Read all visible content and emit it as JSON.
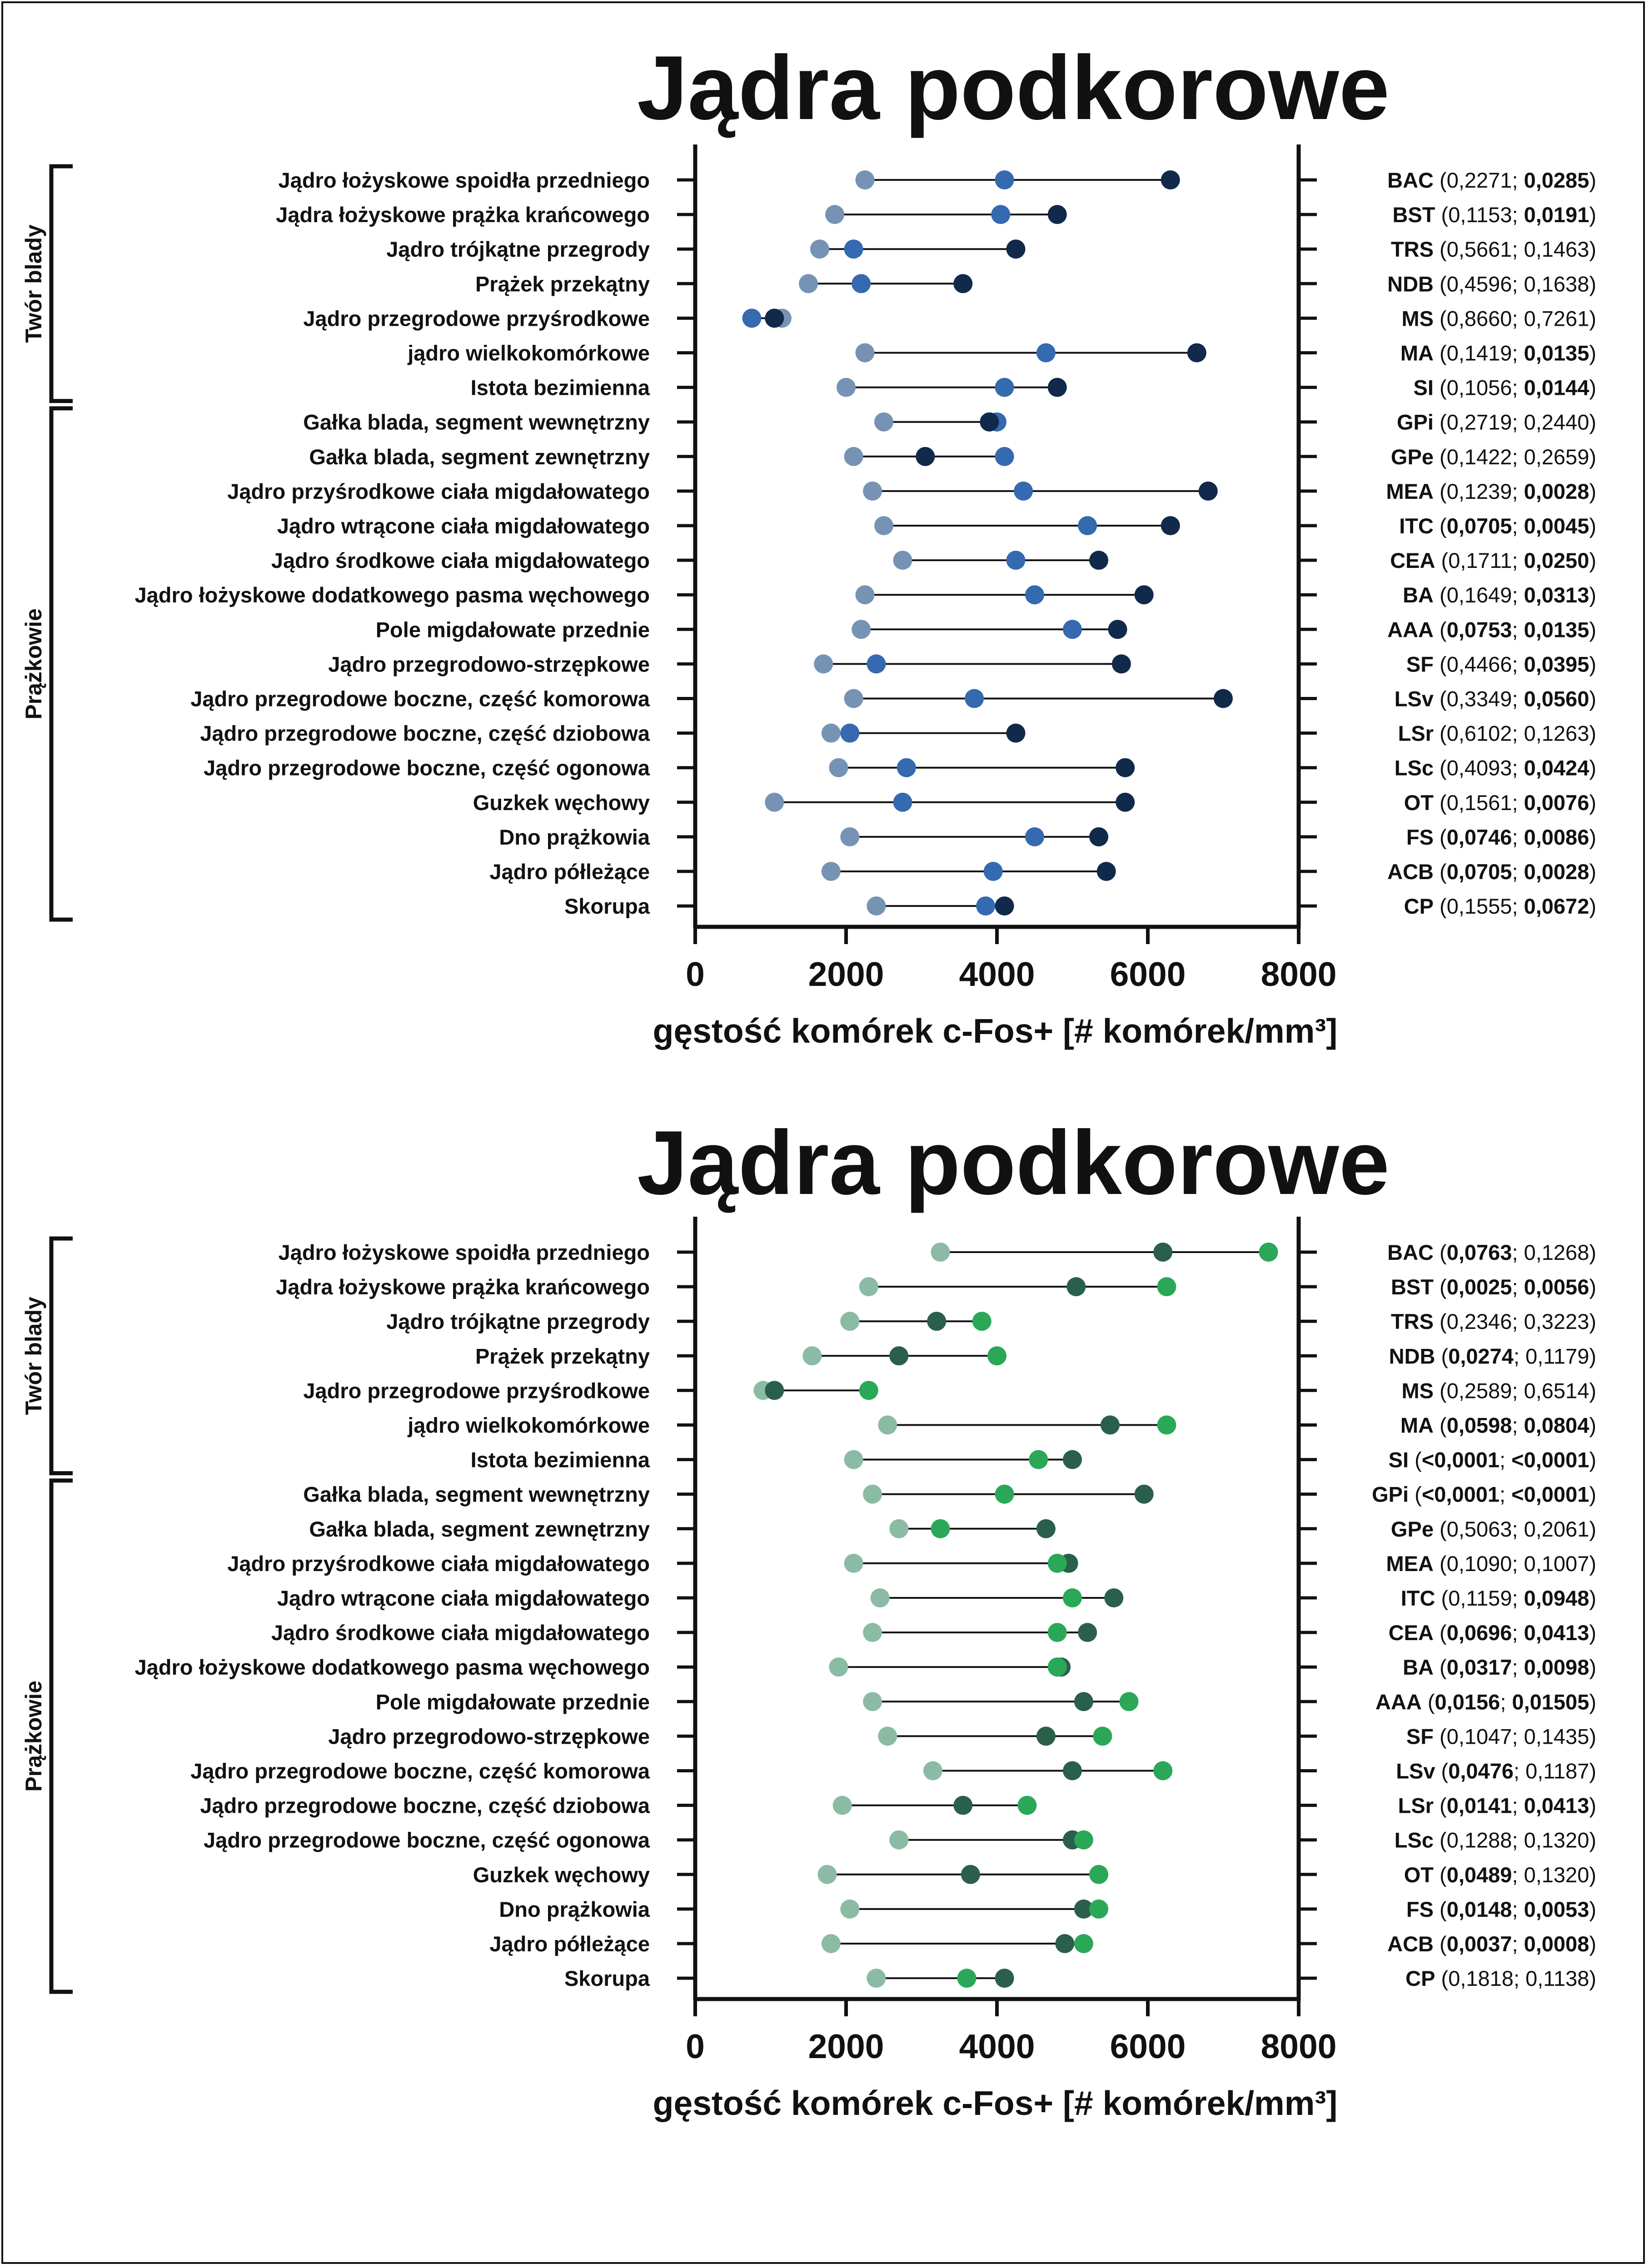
{
  "colors": {
    "panel_top": [
      "#7693b4",
      "#3569b0",
      "#11294a"
    ],
    "panel_bottom": [
      "#8bbba4",
      "#2a5f4b",
      "#2aa858"
    ],
    "line": "#111111"
  },
  "chart_data": [
    {
      "type": "dot-range",
      "title": "Jądra podkorowe",
      "xlabel": "gęstość  komórek c-Fos+ [# komórek/mm³]",
      "xlim": [
        0,
        8000
      ],
      "xticks": [
        "0",
        "2000",
        "4000",
        "6000",
        "8000"
      ],
      "groups": [
        {
          "name": "Twór blady",
          "from": 0,
          "to": 6
        },
        {
          "name": "Prążkowie",
          "from": 7,
          "to": 21
        }
      ],
      "rows": [
        {
          "label": "Jądro łożyskowe spoidła przedniego",
          "values": [
            2250,
            4100,
            6300
          ],
          "abbr": "BAC",
          "p1": "0,2271",
          "p1_bold": false,
          "p2": "0,0285",
          "p2_bold": true
        },
        {
          "label": "Jądra łożyskowe prążka krańcowego",
          "values": [
            1850,
            4050,
            4800
          ],
          "abbr": "BST",
          "p1": "0,1153",
          "p1_bold": false,
          "p2": "0,0191",
          "p2_bold": true
        },
        {
          "label": "Jądro trójkątne przegrody",
          "values": [
            1650,
            2100,
            4250
          ],
          "abbr": "TRS",
          "p1": "0,5661",
          "p1_bold": false,
          "p2": "0,1463",
          "p2_bold": false
        },
        {
          "label": "Prążek przekątny",
          "values": [
            1500,
            2200,
            3550
          ],
          "abbr": "NDB",
          "p1": "0,4596",
          "p1_bold": false,
          "p2": "0,1638",
          "p2_bold": false
        },
        {
          "label": "Jądro przegrodowe przyśrodkowe",
          "values": [
            1150,
            750,
            1050
          ],
          "abbr": "MS",
          "p1": "0,8660",
          "p1_bold": false,
          "p2": "0,7261",
          "p2_bold": false
        },
        {
          "label": "jądro wielkokomórkowe",
          "values": [
            2250,
            4650,
            6650
          ],
          "abbr": "MA",
          "p1": "0,1419",
          "p1_bold": false,
          "p2": "0,0135",
          "p2_bold": true
        },
        {
          "label": "Istota bezimienna",
          "values": [
            2000,
            4100,
            4800
          ],
          "abbr": "SI",
          "p1": "0,1056",
          "p1_bold": false,
          "p2": "0,0144",
          "p2_bold": true
        },
        {
          "label": "Gałka blada, segment wewnętrzny",
          "values": [
            2500,
            4000,
            3900
          ],
          "abbr": "GPi",
          "p1": "0,2719",
          "p1_bold": false,
          "p2": "0,2440",
          "p2_bold": false
        },
        {
          "label": "Gałka blada, segment zewnętrzny",
          "values": [
            2100,
            4100,
            3050
          ],
          "abbr": "GPe",
          "p1": "0,1422",
          "p1_bold": false,
          "p2": "0,2659",
          "p2_bold": false
        },
        {
          "label": "Jądro przyśrodkowe ciała migdałowatego",
          "values": [
            2350,
            4350,
            6800
          ],
          "abbr": "MEA",
          "p1": "0,1239",
          "p1_bold": false,
          "p2": "0,0028",
          "p2_bold": true
        },
        {
          "label": "Jądro wtrącone ciała migdałowatego",
          "values": [
            2500,
            5200,
            6300
          ],
          "abbr": "ITC",
          "p1": "0,0705",
          "p1_bold": true,
          "p2": "0,0045",
          "p2_bold": true
        },
        {
          "label": "Jądro środkowe ciała migdałowatego",
          "values": [
            2750,
            4250,
            5350
          ],
          "abbr": "CEA",
          "p1": "0,1711",
          "p1_bold": false,
          "p2": "0,0250",
          "p2_bold": true
        },
        {
          "label": "Jądro łożyskowe dodatkowego pasma węchowego",
          "values": [
            2250,
            4500,
            5950
          ],
          "abbr": "BA",
          "p1": "0,1649",
          "p1_bold": false,
          "p2": "0,0313",
          "p2_bold": true
        },
        {
          "label": "Pole migdałowate przednie",
          "values": [
            2200,
            5000,
            5600
          ],
          "abbr": "AAA",
          "p1": "0,0753",
          "p1_bold": true,
          "p2": "0,0135",
          "p2_bold": true
        },
        {
          "label": "Jądro przegrodowo-strzępkowe",
          "values": [
            1700,
            2400,
            5650
          ],
          "abbr": "SF",
          "p1": "0,4466",
          "p1_bold": false,
          "p2": "0,0395",
          "p2_bold": true
        },
        {
          "label": "Jądro przegrodowe boczne, część komorowa",
          "values": [
            2100,
            3700,
            7000
          ],
          "abbr": "LSv",
          "p1": "0,3349",
          "p1_bold": false,
          "p2": "0,0560",
          "p2_bold": true
        },
        {
          "label": "Jądro przegrodowe boczne, część dziobowa",
          "values": [
            1800,
            2050,
            4250
          ],
          "abbr": "LSr",
          "p1": "0,6102",
          "p1_bold": false,
          "p2": "0,1263",
          "p2_bold": false
        },
        {
          "label": "Jądro przegrodowe boczne, część ogonowa",
          "values": [
            1900,
            2800,
            5700
          ],
          "abbr": "LSc",
          "p1": "0,4093",
          "p1_bold": false,
          "p2": "0,0424",
          "p2_bold": true
        },
        {
          "label": "Guzkek węchowy",
          "values": [
            1050,
            2750,
            5700
          ],
          "abbr": "OT",
          "p1": "0,1561",
          "p1_bold": false,
          "p2": "0,0076",
          "p2_bold": true
        },
        {
          "label": "Dno prążkowia",
          "values": [
            2050,
            4500,
            5350
          ],
          "abbr": "FS",
          "p1": "0,0746",
          "p1_bold": true,
          "p2": "0,0086",
          "p2_bold": true
        },
        {
          "label": "Jądro półleżące",
          "values": [
            1800,
            3950,
            5450
          ],
          "abbr": "ACB",
          "p1": "0,0705",
          "p1_bold": true,
          "p2": "0,0028",
          "p2_bold": true
        },
        {
          "label": "Skorupa",
          "values": [
            2400,
            3850,
            4100
          ],
          "abbr": "CP",
          "p1": "0,1555",
          "p1_bold": false,
          "p2": "0,0672",
          "p2_bold": true
        }
      ]
    },
    {
      "type": "dot-range",
      "title": "Jądra podkorowe",
      "xlabel": "gęstość  komórek c-Fos+ [# komórek/mm³]",
      "xlim": [
        0,
        8000
      ],
      "xticks": [
        "0",
        "2000",
        "4000",
        "6000",
        "8000"
      ],
      "groups": [
        {
          "name": "Twór blady",
          "from": 0,
          "to": 6
        },
        {
          "name": "Prążkowie",
          "from": 7,
          "to": 21
        }
      ],
      "rows": [
        {
          "label": "Jądro łożyskowe spoidła przedniego",
          "values": [
            3250,
            6200,
            7600
          ],
          "abbr": "BAC",
          "p1": "0,0763",
          "p1_bold": true,
          "p2": "0,1268",
          "p2_bold": false
        },
        {
          "label": "Jądra łożyskowe prążka krańcowego",
          "values": [
            2300,
            5050,
            6250
          ],
          "abbr": "BST",
          "p1": "0,0025",
          "p1_bold": true,
          "p2": "0,0056",
          "p2_bold": true
        },
        {
          "label": "Jądro trójkątne przegrody",
          "values": [
            2050,
            3200,
            3800
          ],
          "abbr": "TRS",
          "p1": "0,2346",
          "p1_bold": false,
          "p2": "0,3223",
          "p2_bold": false
        },
        {
          "label": "Prążek przekątny",
          "values": [
            1550,
            2700,
            4000
          ],
          "abbr": "NDB",
          "p1": "0,0274",
          "p1_bold": true,
          "p2": "0,1179",
          "p2_bold": false
        },
        {
          "label": "Jądro przegrodowe przyśrodkowe",
          "values": [
            900,
            1050,
            2300
          ],
          "abbr": "MS",
          "p1": "0,2589",
          "p1_bold": false,
          "p2": "0,6514",
          "p2_bold": false
        },
        {
          "label": "jądro wielkokomórkowe",
          "values": [
            2550,
            5500,
            6250
          ],
          "abbr": "MA",
          "p1": "0,0598",
          "p1_bold": true,
          "p2": "0,0804",
          "p2_bold": true
        },
        {
          "label": "Istota bezimienna",
          "values": [
            2100,
            5000,
            4550
          ],
          "abbr": "SI",
          "p1": "<0,0001",
          "p1_bold": true,
          "p2": "<0,0001",
          "p2_bold": true
        },
        {
          "label": "Gałka blada, segment wewnętrzny",
          "values": [
            2350,
            5950,
            4100
          ],
          "abbr": "GPi",
          "p1": "<0,0001",
          "p1_bold": true,
          "p2": "<0,0001",
          "p2_bold": true
        },
        {
          "label": "Gałka blada, segment zewnętrzny",
          "values": [
            2700,
            4650,
            3250
          ],
          "abbr": "GPe",
          "p1": "0,5063",
          "p1_bold": false,
          "p2": "0,2061",
          "p2_bold": false
        },
        {
          "label": "Jądro przyśrodkowe ciała migdałowatego",
          "values": [
            2100,
            4950,
            4800
          ],
          "abbr": "MEA",
          "p1": "0,1090",
          "p1_bold": false,
          "p2": "0,1007",
          "p2_bold": false
        },
        {
          "label": "Jądro wtrącone ciała migdałowatego",
          "values": [
            2450,
            5550,
            5000
          ],
          "abbr": "ITC",
          "p1": "0,1159",
          "p1_bold": false,
          "p2": "0,0948",
          "p2_bold": true
        },
        {
          "label": "Jądro środkowe ciała migdałowatego",
          "values": [
            2350,
            5200,
            4800
          ],
          "abbr": "CEA",
          "p1": "0,0696",
          "p1_bold": true,
          "p2": "0,0413",
          "p2_bold": true
        },
        {
          "label": "Jądro łożyskowe dodatkowego pasma węchowego",
          "values": [
            1900,
            4850,
            4800
          ],
          "abbr": "BA",
          "p1": "0,0317",
          "p1_bold": true,
          "p2": "0,0098",
          "p2_bold": true
        },
        {
          "label": "Pole migdałowate przednie",
          "values": [
            2350,
            5150,
            5750
          ],
          "abbr": "AAA",
          "p1": "0,0156",
          "p1_bold": true,
          "p2": "0,01505",
          "p2_bold": true
        },
        {
          "label": "Jądro przegrodowo-strzępkowe",
          "values": [
            2550,
            4650,
            5400
          ],
          "abbr": "SF",
          "p1": "0,1047",
          "p1_bold": false,
          "p2": "0,1435",
          "p2_bold": false
        },
        {
          "label": "Jądro przegrodowe boczne, część komorowa",
          "values": [
            3150,
            5000,
            6200
          ],
          "abbr": "LSv",
          "p1": "0,0476",
          "p1_bold": true,
          "p2": "0,1187",
          "p2_bold": false
        },
        {
          "label": "Jądro przegrodowe boczne, część dziobowa",
          "values": [
            1950,
            3550,
            4400
          ],
          "abbr": "LSr",
          "p1": "0,0141",
          "p1_bold": true,
          "p2": "0,0413",
          "p2_bold": true
        },
        {
          "label": "Jądro przegrodowe boczne, część ogonowa",
          "values": [
            2700,
            5000,
            5150
          ],
          "abbr": "LSc",
          "p1": "0,1288",
          "p1_bold": false,
          "p2": "0,1320",
          "p2_bold": false
        },
        {
          "label": "Guzkek węchowy",
          "values": [
            1750,
            3650,
            5350
          ],
          "abbr": "OT",
          "p1": "0,0489",
          "p1_bold": true,
          "p2": "0,1320",
          "p2_bold": false
        },
        {
          "label": "Dno prążkowia",
          "values": [
            2050,
            5150,
            5350
          ],
          "abbr": "FS",
          "p1": "0,0148",
          "p1_bold": true,
          "p2": "0,0053",
          "p2_bold": true
        },
        {
          "label": "Jądro półleżące",
          "values": [
            1800,
            4900,
            5150
          ],
          "abbr": "ACB",
          "p1": "0,0037",
          "p1_bold": true,
          "p2": "0,0008",
          "p2_bold": true
        },
        {
          "label": "Skorupa",
          "values": [
            2400,
            4100,
            3600
          ],
          "abbr": "CP",
          "p1": "0,1818",
          "p1_bold": false,
          "p2": "0,1138",
          "p2_bold": false
        }
      ]
    }
  ]
}
